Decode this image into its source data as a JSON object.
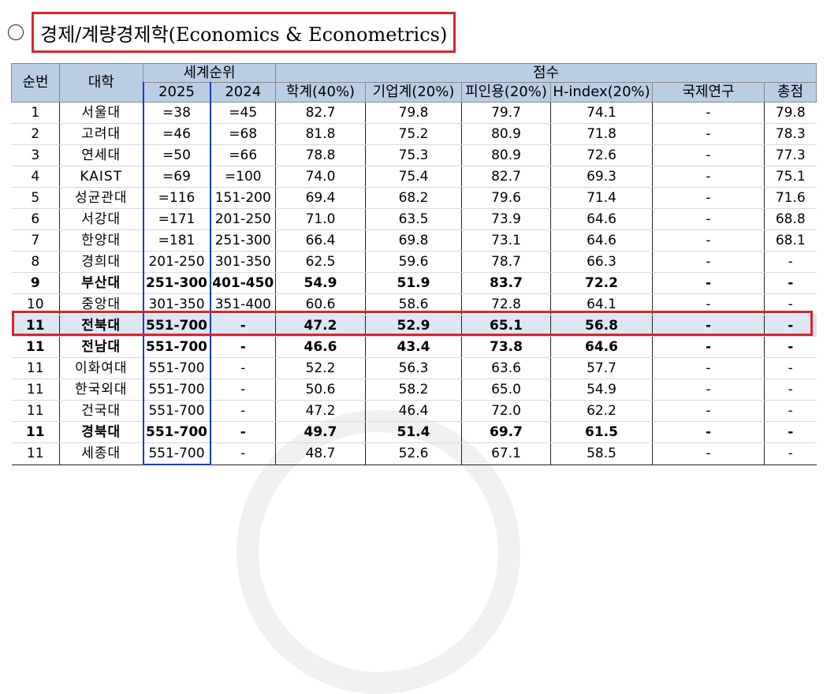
{
  "title": "경제/계량경제학(Economics & Econometrics)",
  "colors": {
    "header_bg": "#b9cde5",
    "highlight_border": "#d9252a",
    "rank_2025_border": "#1a3ec7",
    "highlight_row_bg": "#dde6f3"
  },
  "table": {
    "headers": {
      "rank": "순번",
      "univ": "대학",
      "world_rank": "세계순위",
      "score": "점수",
      "y2025": "2025",
      "y2024": "2024",
      "academic": "학계(40%)",
      "employer": "기업계(20%)",
      "citations": "피인용(20%)",
      "hindex": "H-index(20%)",
      "intl": "국제연구",
      "total": "총점"
    },
    "rows": [
      {
        "rank": "1",
        "univ": "서울대",
        "r2025": "=38",
        "r2024": "=45",
        "academic": "82.7",
        "employer": "79.8",
        "citations": "79.7",
        "hindex": "74.1",
        "intl": "-",
        "total": "79.8",
        "style": "normal"
      },
      {
        "rank": "2",
        "univ": "고려대",
        "r2025": "=46",
        "r2024": "=68",
        "academic": "81.8",
        "employer": "75.2",
        "citations": "80.9",
        "hindex": "71.8",
        "intl": "-",
        "total": "78.3",
        "style": "normal"
      },
      {
        "rank": "3",
        "univ": "연세대",
        "r2025": "=50",
        "r2024": "=66",
        "academic": "78.8",
        "employer": "75.3",
        "citations": "80.9",
        "hindex": "72.6",
        "intl": "-",
        "total": "77.3",
        "style": "normal"
      },
      {
        "rank": "4",
        "univ": "KAIST",
        "r2025": "=69",
        "r2024": "=100",
        "academic": "74.0",
        "employer": "75.4",
        "citations": "82.7",
        "hindex": "69.3",
        "intl": "-",
        "total": "75.1",
        "style": "normal"
      },
      {
        "rank": "5",
        "univ": "성균관대",
        "r2025": "=116",
        "r2024": "151-200",
        "academic": "69.4",
        "employer": "68.2",
        "citations": "79.6",
        "hindex": "71.4",
        "intl": "-",
        "total": "71.6",
        "style": "normal"
      },
      {
        "rank": "6",
        "univ": "서강대",
        "r2025": "=171",
        "r2024": "201-250",
        "academic": "71.0",
        "employer": "63.5",
        "citations": "73.9",
        "hindex": "64.6",
        "intl": "-",
        "total": "68.8",
        "style": "normal"
      },
      {
        "rank": "7",
        "univ": "한양대",
        "r2025": "=181",
        "r2024": "251-300",
        "academic": "66.4",
        "employer": "69.8",
        "citations": "73.1",
        "hindex": "64.6",
        "intl": "-",
        "total": "68.1",
        "style": "normal"
      },
      {
        "rank": "8",
        "univ": "경희대",
        "r2025": "201-250",
        "r2024": "301-350",
        "academic": "62.5",
        "employer": "59.6",
        "citations": "78.7",
        "hindex": "66.3",
        "intl": "-",
        "total": "-",
        "style": "normal"
      },
      {
        "rank": "9",
        "univ": "부산대",
        "r2025": "251-300",
        "r2024": "401-450",
        "academic": "54.9",
        "employer": "51.9",
        "citations": "83.7",
        "hindex": "72.2",
        "intl": "-",
        "total": "-",
        "style": "bold"
      },
      {
        "rank": "10",
        "univ": "중앙대",
        "r2025": "301-350",
        "r2024": "351-400",
        "academic": "60.6",
        "employer": "58.6",
        "citations": "72.8",
        "hindex": "64.1",
        "intl": "-",
        "total": "-",
        "style": "normal"
      },
      {
        "rank": "11",
        "univ": "전북대",
        "r2025": "551-700",
        "r2024": "-",
        "academic": "47.2",
        "employer": "52.9",
        "citations": "65.1",
        "hindex": "56.8",
        "intl": "-",
        "total": "-",
        "style": "highlight"
      },
      {
        "rank": "11",
        "univ": "전남대",
        "r2025": "551-700",
        "r2024": "-",
        "academic": "46.6",
        "employer": "43.4",
        "citations": "73.8",
        "hindex": "64.6",
        "intl": "-",
        "total": "-",
        "style": "bold"
      },
      {
        "rank": "11",
        "univ": "이화여대",
        "r2025": "551-700",
        "r2024": "-",
        "academic": "52.2",
        "employer": "56.3",
        "citations": "63.6",
        "hindex": "57.7",
        "intl": "-",
        "total": "-",
        "style": "normal"
      },
      {
        "rank": "11",
        "univ": "한국외대",
        "r2025": "551-700",
        "r2024": "-",
        "academic": "50.6",
        "employer": "58.2",
        "citations": "65.0",
        "hindex": "54.9",
        "intl": "-",
        "total": "-",
        "style": "normal"
      },
      {
        "rank": "11",
        "univ": "건국대",
        "r2025": "551-700",
        "r2024": "-",
        "academic": "47.2",
        "employer": "46.4",
        "citations": "72.0",
        "hindex": "62.2",
        "intl": "-",
        "total": "-",
        "style": "normal"
      },
      {
        "rank": "11",
        "univ": "경북대",
        "r2025": "551-700",
        "r2024": "-",
        "academic": "49.7",
        "employer": "51.4",
        "citations": "69.7",
        "hindex": "61.5",
        "intl": "-",
        "total": "-",
        "style": "bold"
      },
      {
        "rank": "11",
        "univ": "세종대",
        "r2025": "551-700",
        "r2024": "-",
        "academic": "48.7",
        "employer": "52.6",
        "citations": "67.1",
        "hindex": "58.5",
        "intl": "-",
        "total": "-",
        "style": "normal"
      }
    ]
  }
}
